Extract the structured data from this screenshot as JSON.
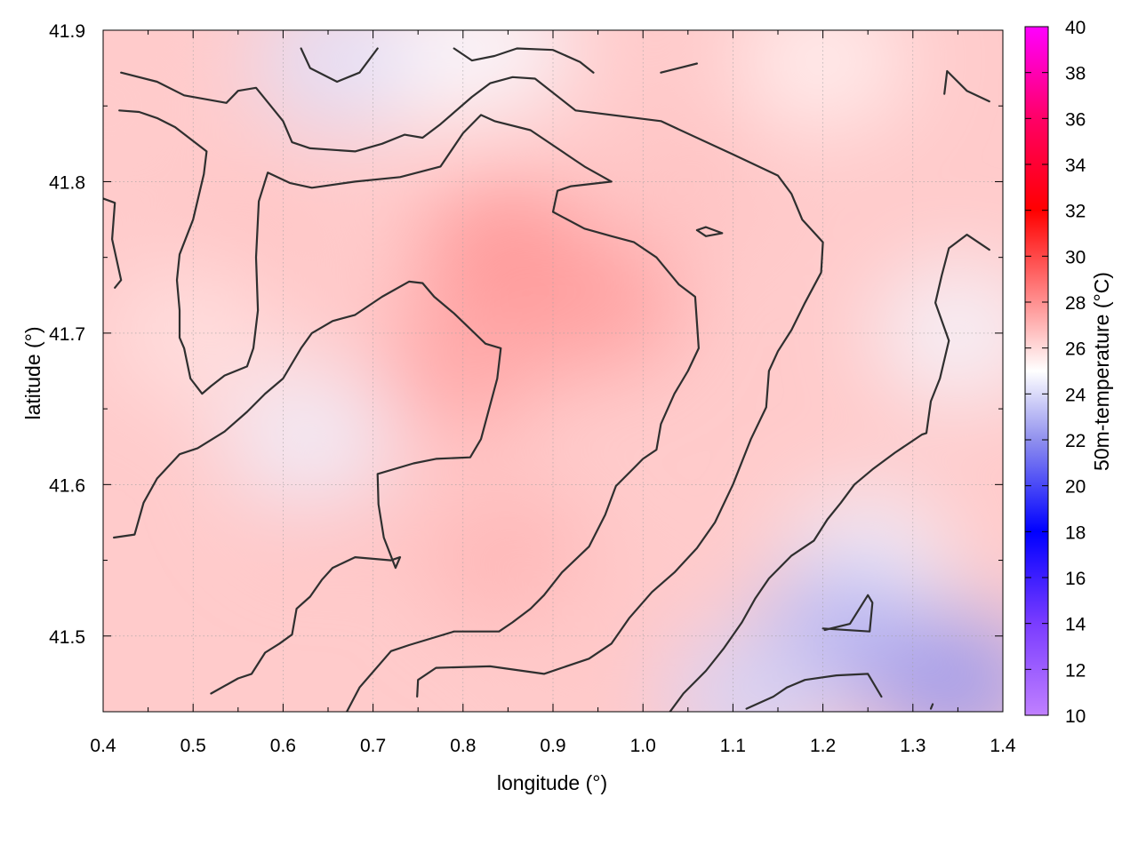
{
  "chart_data": {
    "type": "heatmap",
    "xlabel": "longitude (°)",
    "ylabel": "latitude (°)",
    "colorbar_label": "50m-temperature (°C)",
    "xlim": [
      0.4,
      1.4
    ],
    "ylim": [
      41.45,
      41.9
    ],
    "x_ticks": [
      "0.4",
      "0.5",
      "0.6",
      "0.7",
      "0.8",
      "0.9",
      "1.0",
      "1.1",
      "1.2",
      "1.3",
      "1.4"
    ],
    "y_ticks": [
      "41.5",
      "41.6",
      "41.7",
      "41.8",
      "41.9"
    ],
    "colorbar_range": [
      10,
      40
    ],
    "colorbar_ticks": [
      "10",
      "12",
      "14",
      "16",
      "18",
      "20",
      "22",
      "24",
      "26",
      "28",
      "30",
      "32",
      "34",
      "36",
      "38",
      "40"
    ],
    "colormap_stops": [
      {
        "value": 10,
        "color": "#c080ff"
      },
      {
        "value": 14,
        "color": "#7a3cff"
      },
      {
        "value": 18,
        "color": "#0000ff"
      },
      {
        "value": 22,
        "color": "#9090ee"
      },
      {
        "value": 25,
        "color": "#ffffff"
      },
      {
        "value": 28,
        "color": "#ff9090"
      },
      {
        "value": 32,
        "color": "#ff0000"
      },
      {
        "value": 36,
        "color": "#ff0066"
      },
      {
        "value": 40,
        "color": "#ff00ff"
      }
    ],
    "temperature_fields": [
      {
        "lon": 0.55,
        "lat": 41.75,
        "temp": 26.6
      },
      {
        "lon": 0.5,
        "lat": 41.7,
        "temp": 25.8
      },
      {
        "lon": 0.85,
        "lat": 41.75,
        "temp": 28.0
      },
      {
        "lon": 0.8,
        "lat": 41.68,
        "temp": 27.4
      },
      {
        "lon": 0.95,
        "lat": 41.72,
        "temp": 27.6
      },
      {
        "lon": 1.05,
        "lat": 41.8,
        "temp": 26.6
      },
      {
        "lon": 0.65,
        "lat": 41.6,
        "temp": 26.8
      },
      {
        "lon": 0.85,
        "lat": 41.55,
        "temp": 27.0
      },
      {
        "lon": 0.95,
        "lat": 41.5,
        "temp": 26.5
      },
      {
        "lon": 0.4,
        "lat": 41.85,
        "temp": 26.4
      },
      {
        "lon": 0.75,
        "lat": 41.88,
        "temp": 25.3
      },
      {
        "lon": 1.2,
        "lat": 41.88,
        "temp": 25.4
      },
      {
        "lon": 1.35,
        "lat": 41.7,
        "temp": 24.7
      },
      {
        "lon": 1.25,
        "lat": 41.55,
        "temp": 24.6
      },
      {
        "lon": 1.22,
        "lat": 41.5,
        "temp": 22.8
      },
      {
        "lon": 1.35,
        "lat": 41.47,
        "temp": 22.2
      },
      {
        "lon": 1.12,
        "lat": 41.46,
        "temp": 23.8
      },
      {
        "lon": 0.63,
        "lat": 41.63,
        "temp": 24.6
      },
      {
        "lon": 0.66,
        "lat": 41.88,
        "temp": 24.2
      },
      {
        "lon": 0.83,
        "lat": 41.89,
        "temp": 24.8
      }
    ],
    "contours": [
      [
        [
          0.42,
          41.872
        ],
        [
          0.46,
          41.866
        ],
        [
          0.49,
          41.857
        ],
        [
          0.537,
          41.852
        ],
        [
          0.55,
          41.86
        ],
        [
          0.57,
          41.862
        ],
        [
          0.6,
          41.84
        ],
        [
          0.61,
          41.826
        ],
        [
          0.63,
          41.822
        ],
        [
          0.68,
          41.82
        ],
        [
          0.71,
          41.825
        ],
        [
          0.735,
          41.831
        ],
        [
          0.755,
          41.829
        ],
        [
          0.775,
          41.838
        ],
        [
          0.81,
          41.856
        ],
        [
          0.83,
          41.865
        ],
        [
          0.855,
          41.869
        ],
        [
          0.88,
          41.868
        ],
        [
          0.925,
          41.847
        ],
        [
          1.02,
          41.84
        ],
        [
          1.1,
          41.818
        ],
        [
          1.15,
          41.804
        ],
        [
          1.165,
          41.792
        ],
        [
          1.177,
          41.775
        ],
        [
          1.2,
          41.76
        ],
        [
          1.198,
          41.74
        ],
        [
          1.18,
          41.72
        ],
        [
          1.165,
          41.702
        ],
        [
          1.15,
          41.688
        ],
        [
          1.14,
          41.675
        ],
        [
          1.137,
          41.651
        ],
        [
          1.12,
          41.63
        ],
        [
          1.1,
          41.6
        ],
        [
          1.08,
          41.575
        ],
        [
          1.06,
          41.558
        ],
        [
          1.035,
          41.542
        ],
        [
          1.01,
          41.529
        ],
        [
          0.985,
          41.512
        ],
        [
          0.965,
          41.495
        ],
        [
          0.94,
          41.485
        ],
        [
          0.89,
          41.475
        ],
        [
          0.83,
          41.48
        ],
        [
          0.77,
          41.479
        ],
        [
          0.75,
          41.471
        ],
        [
          0.749,
          41.46
        ]
      ],
      [
        [
          0.418,
          41.847
        ],
        [
          0.44,
          41.846
        ],
        [
          0.46,
          41.842
        ],
        [
          0.48,
          41.836
        ],
        [
          0.515,
          41.82
        ],
        [
          0.512,
          41.805
        ],
        [
          0.5,
          41.775
        ],
        [
          0.485,
          41.752
        ],
        [
          0.482,
          41.735
        ],
        [
          0.485,
          41.715
        ],
        [
          0.485,
          41.697
        ],
        [
          0.49,
          41.69
        ],
        [
          0.497,
          41.67
        ],
        [
          0.51,
          41.66
        ],
        [
          0.52,
          41.665
        ],
        [
          0.535,
          41.672
        ],
        [
          0.56,
          41.678
        ],
        [
          0.567,
          41.69
        ],
        [
          0.572,
          41.715
        ],
        [
          0.57,
          41.75
        ],
        [
          0.573,
          41.787
        ],
        [
          0.583,
          41.806
        ],
        [
          0.608,
          41.799
        ],
        [
          0.632,
          41.796
        ],
        [
          0.68,
          41.8
        ],
        [
          0.73,
          41.803
        ],
        [
          0.775,
          41.81
        ],
        [
          0.8,
          41.832
        ],
        [
          0.82,
          41.844
        ],
        [
          0.835,
          41.84
        ],
        [
          0.875,
          41.834
        ],
        [
          0.925,
          41.814
        ],
        [
          0.935,
          41.81
        ],
        [
          0.95,
          41.805
        ],
        [
          0.965,
          41.8
        ],
        [
          0.92,
          41.797
        ],
        [
          0.905,
          41.794
        ],
        [
          0.9,
          41.78
        ],
        [
          0.935,
          41.769
        ],
        [
          0.965,
          41.764
        ],
        [
          0.99,
          41.76
        ],
        [
          1.015,
          41.75
        ],
        [
          1.04,
          41.732
        ],
        [
          1.058,
          41.724
        ],
        [
          1.062,
          41.69
        ],
        [
          1.05,
          41.675
        ],
        [
          1.035,
          41.66
        ],
        [
          1.02,
          41.64
        ],
        [
          1.015,
          41.623
        ],
        [
          1.0,
          41.617
        ],
        [
          0.99,
          41.611
        ],
        [
          0.97,
          41.599
        ],
        [
          0.958,
          41.58
        ],
        [
          0.94,
          41.559
        ],
        [
          0.91,
          41.542
        ],
        [
          0.89,
          41.527
        ],
        [
          0.875,
          41.518
        ],
        [
          0.855,
          41.509
        ],
        [
          0.84,
          41.503
        ],
        [
          0.79,
          41.503
        ],
        [
          0.74,
          41.494
        ],
        [
          0.72,
          41.49
        ],
        [
          0.685,
          41.466
        ],
        [
          0.67,
          41.449
        ]
      ],
      [
        [
          0.413,
          41.73
        ],
        [
          0.42,
          41.735
        ],
        [
          0.41,
          41.762
        ],
        [
          0.413,
          41.786
        ],
        [
          0.395,
          41.79
        ]
      ],
      [
        [
          0.412,
          41.565
        ],
        [
          0.435,
          41.567
        ],
        [
          0.445,
          41.588
        ],
        [
          0.46,
          41.604
        ],
        [
          0.485,
          41.62
        ],
        [
          0.505,
          41.624
        ],
        [
          0.535,
          41.635
        ],
        [
          0.56,
          41.648
        ],
        [
          0.58,
          41.66
        ],
        [
          0.6,
          41.67
        ],
        [
          0.62,
          41.69
        ],
        [
          0.632,
          41.7
        ],
        [
          0.655,
          41.708
        ],
        [
          0.68,
          41.712
        ],
        [
          0.71,
          41.724
        ],
        [
          0.74,
          41.734
        ],
        [
          0.755,
          41.733
        ],
        [
          0.768,
          41.724
        ],
        [
          0.79,
          41.713
        ],
        [
          0.825,
          41.693
        ],
        [
          0.842,
          41.69
        ],
        [
          0.838,
          41.67
        ],
        [
          0.82,
          41.63
        ],
        [
          0.808,
          41.618
        ],
        [
          0.77,
          41.617
        ],
        [
          0.745,
          41.614
        ],
        [
          0.705,
          41.607
        ],
        [
          0.706,
          41.587
        ],
        [
          0.712,
          41.565
        ],
        [
          0.725,
          41.545
        ],
        [
          0.73,
          41.552
        ],
        [
          0.72,
          41.55
        ],
        [
          0.68,
          41.552
        ],
        [
          0.655,
          41.545
        ],
        [
          0.643,
          41.537
        ],
        [
          0.63,
          41.526
        ],
        [
          0.615,
          41.518
        ],
        [
          0.61,
          41.501
        ],
        [
          0.596,
          41.495
        ],
        [
          0.58,
          41.489
        ],
        [
          0.565,
          41.475
        ],
        [
          0.55,
          41.472
        ],
        [
          0.52,
          41.462
        ]
      ],
      [
        [
          0.62,
          41.888
        ],
        [
          0.63,
          41.875
        ],
        [
          0.66,
          41.866
        ],
        [
          0.685,
          41.872
        ],
        [
          0.705,
          41.888
        ]
      ],
      [
        [
          0.79,
          41.888
        ],
        [
          0.81,
          41.88
        ],
        [
          0.835,
          41.883
        ],
        [
          0.86,
          41.888
        ],
        [
          0.9,
          41.887
        ],
        [
          0.93,
          41.879
        ],
        [
          0.945,
          41.872
        ]
      ],
      [
        [
          1.02,
          41.872
        ],
        [
          1.06,
          41.878
        ]
      ],
      [
        [
          1.335,
          41.858
        ],
        [
          1.338,
          41.873
        ],
        [
          1.36,
          41.86
        ],
        [
          1.385,
          41.853
        ]
      ],
      [
        [
          1.06,
          41.768
        ],
        [
          1.07,
          41.77
        ],
        [
          1.088,
          41.766
        ],
        [
          1.07,
          41.764
        ],
        [
          1.06,
          41.768
        ]
      ],
      [
        [
          1.385,
          41.755
        ],
        [
          1.36,
          41.765
        ],
        [
          1.34,
          41.756
        ],
        [
          1.332,
          41.738
        ],
        [
          1.325,
          41.72
        ],
        [
          1.34,
          41.695
        ],
        [
          1.33,
          41.67
        ],
        [
          1.32,
          41.655
        ],
        [
          1.315,
          41.634
        ],
        [
          1.31,
          41.633
        ],
        [
          1.28,
          41.621
        ],
        [
          1.255,
          41.61
        ],
        [
          1.235,
          41.6
        ],
        [
          1.22,
          41.588
        ],
        [
          1.205,
          41.577
        ],
        [
          1.19,
          41.563
        ],
        [
          1.165,
          41.553
        ],
        [
          1.14,
          41.538
        ],
        [
          1.125,
          41.525
        ],
        [
          1.11,
          41.509
        ],
        [
          1.09,
          41.492
        ],
        [
          1.07,
          41.477
        ],
        [
          1.045,
          41.462
        ],
        [
          1.03,
          41.45
        ]
      ],
      [
        [
          1.202,
          41.504
        ],
        [
          1.23,
          41.508
        ],
        [
          1.25,
          41.527
        ],
        [
          1.255,
          41.522
        ],
        [
          1.252,
          41.503
        ],
        [
          1.2,
          41.505
        ]
      ],
      [
        [
          1.115,
          41.452
        ],
        [
          1.145,
          41.46
        ],
        [
          1.16,
          41.466
        ],
        [
          1.18,
          41.471
        ],
        [
          1.215,
          41.474
        ],
        [
          1.25,
          41.475
        ],
        [
          1.265,
          41.46
        ]
      ],
      [
        [
          1.32,
          41.452
        ],
        [
          1.322,
          41.455
        ]
      ]
    ]
  }
}
